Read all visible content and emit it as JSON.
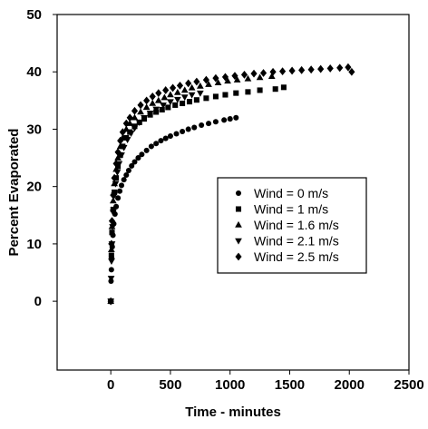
{
  "chart_data": {
    "type": "scatter",
    "title": "",
    "xlabel": "Time - minutes",
    "ylabel": "Percent Evaporated",
    "xlim": [
      -450,
      2500
    ],
    "ylim": [
      -12,
      50
    ],
    "xticks": [
      0,
      500,
      1000,
      1500,
      2000,
      2500
    ],
    "yticks": [
      0,
      10,
      20,
      30,
      40,
      50
    ],
    "grid": false,
    "legend_position": "center-right",
    "series": [
      {
        "name": "Wind = 0 m/s",
        "marker": "circle",
        "x": [
          0,
          2,
          5,
          8,
          12,
          18,
          25,
          35,
          45,
          60,
          75,
          90,
          110,
          130,
          150,
          175,
          200,
          230,
          260,
          300,
          340,
          380,
          420,
          460,
          500,
          550,
          600,
          650,
          700,
          760,
          820,
          880,
          950,
          1000,
          1050
        ],
        "y": [
          0,
          3.5,
          5.5,
          7.5,
          9.5,
          11.5,
          13.5,
          15.2,
          16.5,
          18,
          19.2,
          20.2,
          21.2,
          22,
          22.8,
          23.6,
          24.3,
          25,
          25.6,
          26.3,
          27,
          27.5,
          28,
          28.4,
          28.8,
          29.2,
          29.6,
          30,
          30.3,
          30.7,
          31,
          31.3,
          31.6,
          31.8,
          32
        ]
      },
      {
        "name": "Wind = 1 m/s",
        "marker": "square",
        "x": [
          0,
          5,
          10,
          20,
          30,
          45,
          60,
          80,
          100,
          130,
          160,
          200,
          240,
          280,
          330,
          380,
          430,
          480,
          540,
          600,
          660,
          720,
          800,
          880,
          960,
          1050,
          1150,
          1250,
          1380,
          1450
        ],
        "y": [
          0,
          8,
          12,
          16,
          19,
          21.5,
          23.5,
          25.5,
          27,
          28.5,
          29.5,
          30.5,
          31.2,
          31.8,
          32.5,
          33,
          33.4,
          33.8,
          34.2,
          34.5,
          34.8,
          35.1,
          35.4,
          35.7,
          36,
          36.3,
          36.5,
          36.8,
          37,
          37.3
        ]
      },
      {
        "name": "Wind = 1.6 m/s",
        "marker": "triangle",
        "x": [
          0,
          5,
          10,
          20,
          30,
          45,
          60,
          80,
          100,
          130,
          160,
          200,
          250,
          300,
          350,
          400,
          450,
          500,
          560,
          620,
          680,
          750,
          820,
          900,
          980,
          1060,
          1150,
          1250,
          1350
        ],
        "y": [
          0,
          9,
          13,
          17.5,
          20.5,
          23,
          25,
          27,
          28.5,
          30,
          31,
          32,
          33,
          33.8,
          34.5,
          35,
          35.5,
          36,
          36.4,
          36.8,
          37.2,
          37.5,
          37.8,
          38.1,
          38.4,
          38.6,
          38.8,
          39,
          39.2
        ]
      },
      {
        "name": "Wind = 2.1 m/s",
        "marker": "triangle-down",
        "x": [
          0,
          3,
          6,
          10,
          15,
          20,
          30,
          40,
          55,
          70,
          90,
          110,
          140,
          170,
          200,
          240,
          280,
          330,
          380,
          440,
          500,
          560,
          620,
          680,
          750
        ],
        "y": [
          0,
          4,
          7,
          10,
          13,
          15.5,
          18.5,
          20.5,
          22.5,
          24,
          25.5,
          26.8,
          28.2,
          29.3,
          30.2,
          31.2,
          32,
          32.8,
          33.5,
          34.2,
          34.8,
          35.2,
          35.6,
          36,
          36.3
        ]
      },
      {
        "name": "Wind = 2.5 m/s",
        "marker": "diamond",
        "x": [
          0,
          5,
          10,
          20,
          30,
          45,
          60,
          80,
          100,
          130,
          160,
          200,
          250,
          300,
          350,
          400,
          460,
          520,
          580,
          650,
          720,
          800,
          880,
          960,
          1040,
          1120,
          1200,
          1280,
          1360,
          1440,
          1520,
          1600,
          1680,
          1760,
          1840,
          1920,
          1990,
          2020
        ],
        "y": [
          0,
          10,
          14,
          18.5,
          21.5,
          24,
          26,
          28,
          29.5,
          31,
          32,
          33.2,
          34.2,
          35,
          35.7,
          36.3,
          36.8,
          37.2,
          37.6,
          38,
          38.3,
          38.6,
          38.9,
          39.1,
          39.3,
          39.5,
          39.7,
          39.8,
          40,
          40.1,
          40.2,
          40.3,
          40.4,
          40.5,
          40.6,
          40.7,
          40.8,
          40
        ]
      }
    ]
  }
}
